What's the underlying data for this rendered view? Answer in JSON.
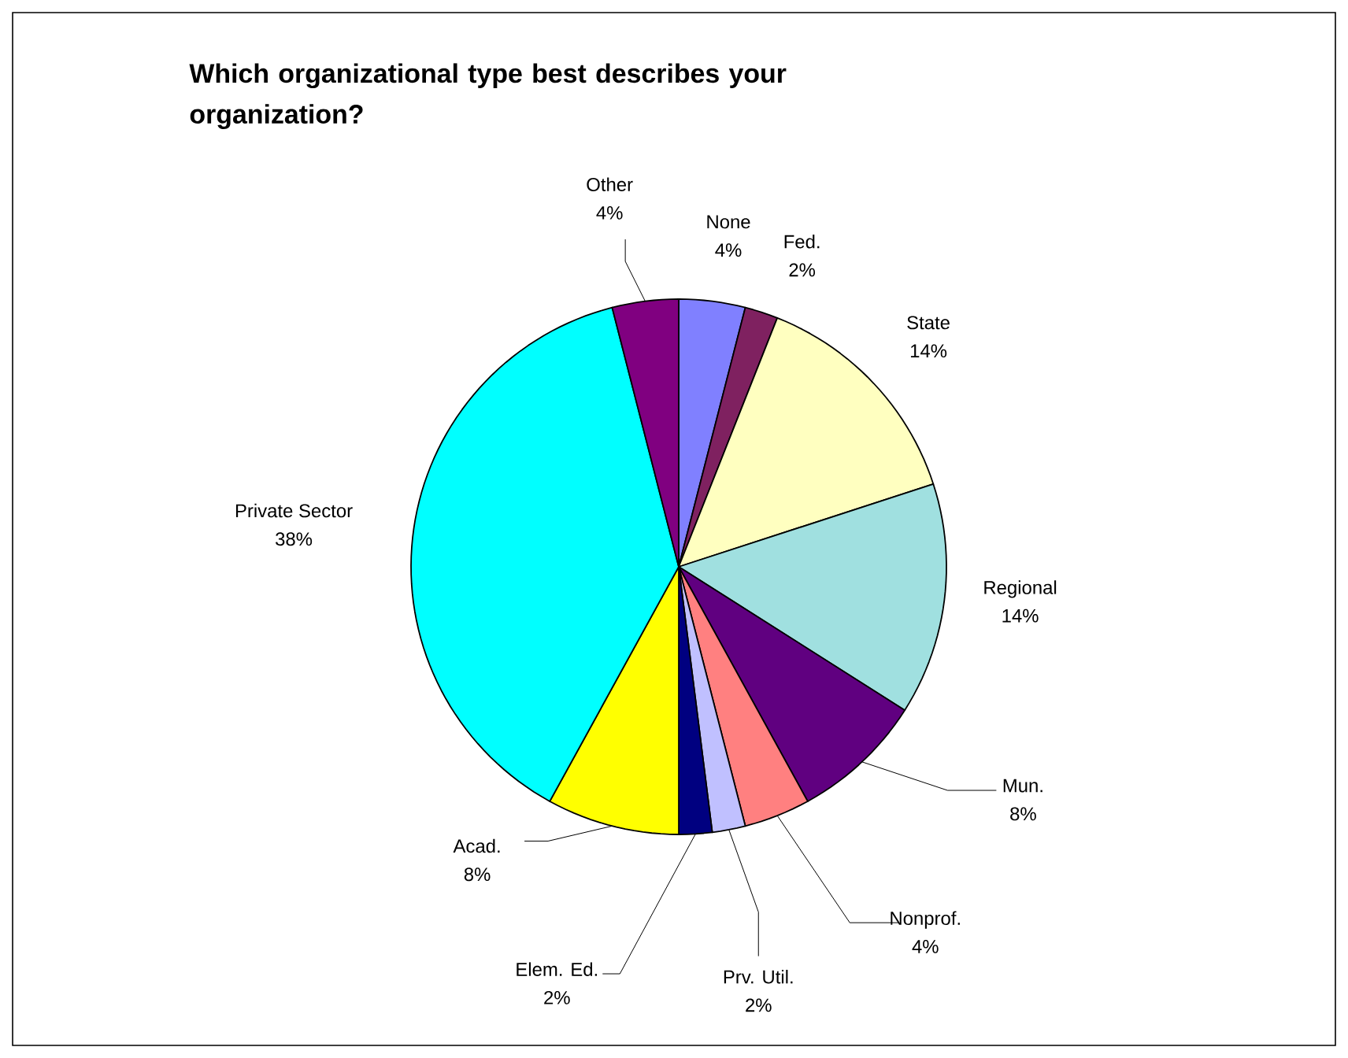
{
  "chart_data": {
    "type": "pie",
    "title": "Which organizational type best describes your organization?",
    "categories": [
      "None",
      "Fed.",
      "State",
      "Regional",
      "Mun.",
      "Nonprof.",
      "Prv. Util.",
      "Elem. Ed.",
      "Acad.",
      "Private Sector",
      "Other"
    ],
    "values": [
      4,
      2,
      14,
      14,
      8,
      4,
      2,
      2,
      8,
      38,
      4
    ],
    "colors": [
      "#8080ff",
      "#7f2160",
      "#ffffc0",
      "#a0e0e0",
      "#600080",
      "#ff8080",
      "#c0c0ff",
      "#000080",
      "#ffff00",
      "#00ffff",
      "#800080"
    ],
    "value_labels": [
      "4%",
      "2%",
      "14%",
      "14%",
      "8%",
      "4%",
      "2%",
      "2%",
      "8%",
      "38%",
      "4%"
    ]
  }
}
